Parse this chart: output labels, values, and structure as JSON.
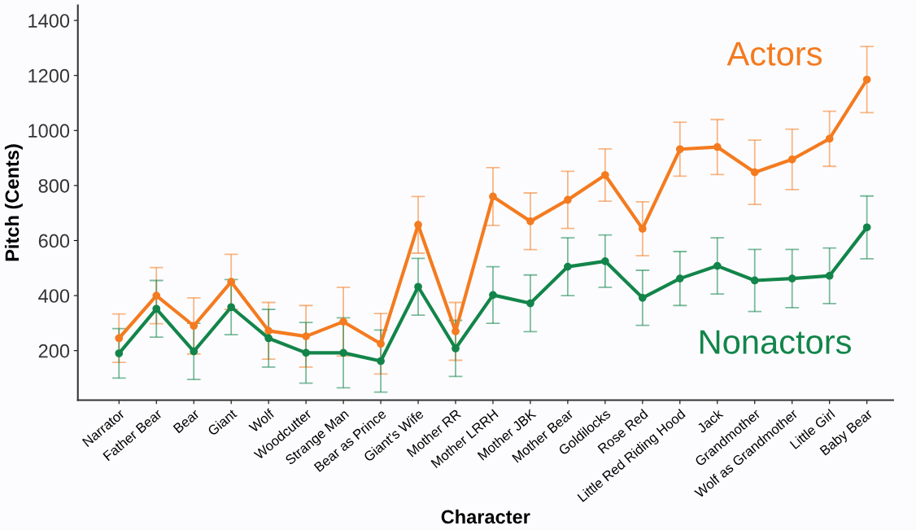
{
  "chart_data": {
    "type": "line",
    "xlabel": "Character",
    "ylabel": "Pitch (Cents)",
    "categories": [
      "Narrator",
      "Father Bear",
      "Bear",
      "Giant",
      "Wolf",
      "Woodcutter",
      "Strange Man",
      "Bear as Prince",
      "Giant’s Wife",
      "Mother RR",
      "Mother LRRH",
      "Mother JBK",
      "Mother Bear",
      "Goldilocks",
      "Rose Red",
      "Little Red Riding Hood",
      "Jack",
      "Grandmother",
      "Wolf as Grandmother",
      "Little Girl",
      "Baby Bear"
    ],
    "series": [
      {
        "name": "Actors",
        "color": "#f47b20",
        "values": [
          245,
          400,
          290,
          450,
          272,
          252,
          305,
          225,
          657,
          270,
          760,
          670,
          748,
          838,
          643,
          932,
          940,
          848,
          895,
          970,
          1185
        ],
        "errors": [
          88,
          102,
          102,
          100,
          103,
          112,
          125,
          110,
          103,
          105,
          105,
          103,
          104,
          95,
          98,
          98,
          100,
          117,
          110,
          100,
          120
        ]
      },
      {
        "name": "Nonactors",
        "color": "#13854a",
        "values": [
          190,
          352,
          197,
          358,
          245,
          192,
          192,
          162,
          432,
          208,
          402,
          372,
          505,
          525,
          392,
          462,
          508,
          455,
          462,
          472,
          648
        ],
        "errors": [
          90,
          103,
          102,
          100,
          105,
          110,
          127,
          113,
          103,
          102,
          103,
          103,
          105,
          95,
          100,
          98,
          102,
          113,
          106,
          101,
          114
        ]
      }
    ],
    "ylim": [
      20,
      1455
    ],
    "yticks": [
      200,
      400,
      600,
      800,
      1000,
      1200,
      1400
    ],
    "grid": false,
    "legend": false,
    "marker": "circle",
    "line_style": "solid"
  }
}
